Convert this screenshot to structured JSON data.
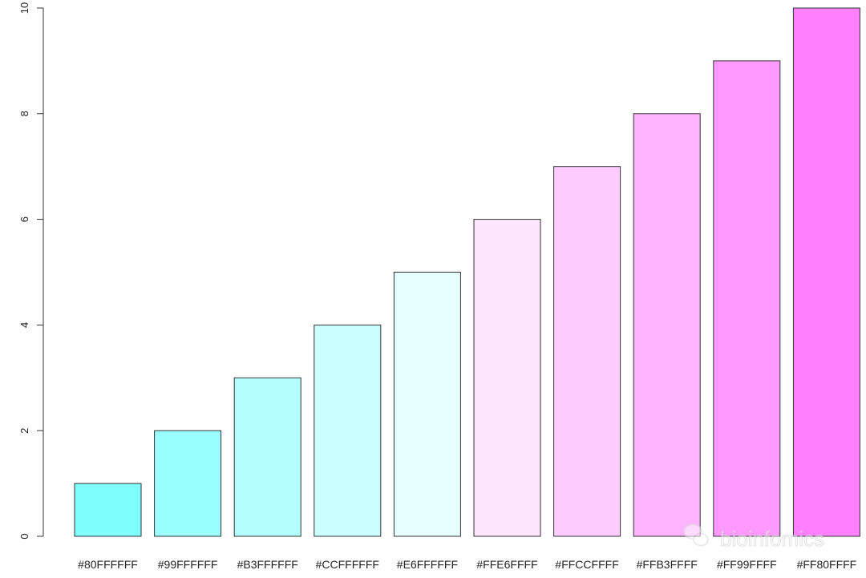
{
  "chart_data": {
    "type": "bar",
    "title": "",
    "xlabel": "",
    "ylabel": "",
    "categories": [
      "#80FFFFFF",
      "#99FFFFFF",
      "#B3FFFFFF",
      "#CCFFFFFF",
      "#E6FFFFFF",
      "#FFE6FFFF",
      "#FFCCFFFF",
      "#FFB3FFFF",
      "#FF99FFFF",
      "#FF80FFFF"
    ],
    "values": [
      1,
      2,
      3,
      4,
      5,
      6,
      7,
      8,
      9,
      10
    ],
    "colors": [
      "#80FFFF",
      "#99FFFF",
      "#B3FFFF",
      "#CCFFFF",
      "#E6FFFF",
      "#FFE6FF",
      "#FFCCFF",
      "#FFB3FF",
      "#FF99FF",
      "#FF80FF"
    ],
    "ylim": [
      0,
      10
    ],
    "yticks": [
      "0",
      "2",
      "4",
      "6",
      "8",
      "10"
    ],
    "grid": false,
    "bar_border_color": "#333333"
  },
  "watermark": {
    "text": "bioinfomics",
    "icon": "wechat-icon"
  }
}
